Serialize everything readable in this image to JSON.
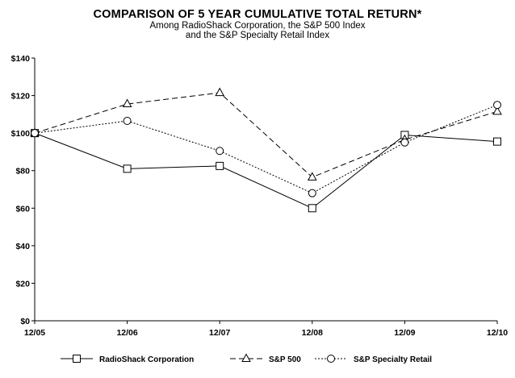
{
  "chart_data": {
    "type": "line",
    "title": "COMPARISON OF 5 YEAR CUMULATIVE TOTAL RETURN*",
    "subtitle": [
      "Among RadioShack Corporation, the S&P 500 Index",
      "and the S&P Specialty Retail Index"
    ],
    "categories": [
      "12/05",
      "12/06",
      "12/07",
      "12/08",
      "12/09",
      "12/10"
    ],
    "ylim": [
      0,
      140
    ],
    "yticks": [
      0,
      20,
      40,
      60,
      80,
      100,
      120,
      140
    ],
    "ytick_labels": [
      "$0",
      "$20",
      "$40",
      "$60",
      "$80",
      "$100",
      "$120",
      "$140"
    ],
    "grid": false,
    "legend_position": "bottom",
    "series": [
      {
        "name": "RadioShack Corporation",
        "marker": "square",
        "dash": "solid",
        "values": [
          100,
          81,
          82.5,
          60,
          99,
          95.5
        ]
      },
      {
        "name": "S&P 500",
        "marker": "triangle",
        "dash": "dashed",
        "values": [
          100,
          115.5,
          121.5,
          76.5,
          96.5,
          111.5
        ]
      },
      {
        "name": "S&P Specialty Retail",
        "marker": "circle",
        "dash": "dotted",
        "values": [
          100,
          106.5,
          90.5,
          68,
          95,
          115
        ]
      }
    ]
  }
}
